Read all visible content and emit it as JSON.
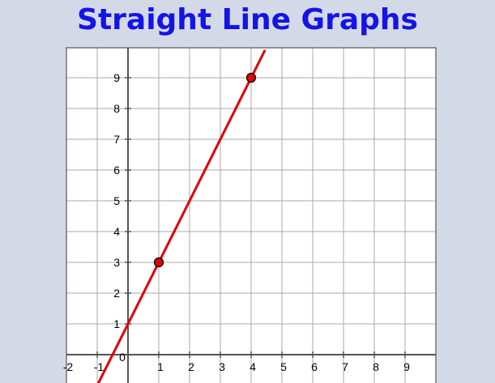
{
  "colors": {
    "background": "#d4d9e8",
    "title": "#1414e6",
    "grid": "#a9a9a9",
    "axis": "#555555",
    "line": "#e00000",
    "point": "#e00000"
  },
  "chart_data": {
    "type": "line",
    "title": "Straight Line Graphs",
    "x_ticks": [
      -2,
      -1,
      0,
      1,
      2,
      3,
      4,
      5,
      6,
      7,
      8,
      9
    ],
    "y_ticks": [
      0,
      1,
      2,
      3,
      4,
      5,
      6,
      7,
      8,
      9
    ],
    "xlim": [
      -2,
      10
    ],
    "ylim": [
      -0.8,
      10
    ],
    "grid": true,
    "line": {
      "slope": 2,
      "intercept": 1,
      "x_range": [
        -1,
        4.45
      ]
    },
    "points": [
      {
        "x": 1,
        "y": 3
      },
      {
        "x": 4,
        "y": 9
      }
    ]
  }
}
